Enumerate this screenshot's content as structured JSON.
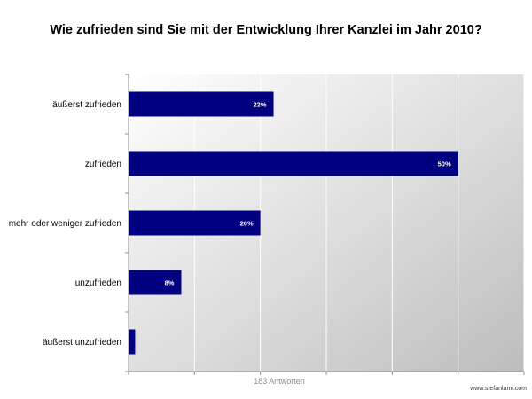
{
  "chart_data": {
    "type": "bar",
    "orientation": "horizontal",
    "title": "Wie zufrieden sind Sie mit der Entwicklung Ihrer Kanzlei im Jahr 2010?",
    "categories": [
      "äußerst zufrieden",
      "zufrieden",
      "mehr oder weniger zufrieden",
      "unzufrieden",
      "äußerst unzufrieden"
    ],
    "values": [
      22,
      50,
      20,
      8,
      1
    ],
    "data_labels": [
      "22%",
      "50%",
      "20%",
      "8%",
      ""
    ],
    "xlim": [
      0,
      60
    ],
    "xlabel": "183 Antworten",
    "ylabel": "",
    "grid": true,
    "bar_color": "#000080"
  },
  "footer": {
    "source": "www.stefanlami.com"
  }
}
